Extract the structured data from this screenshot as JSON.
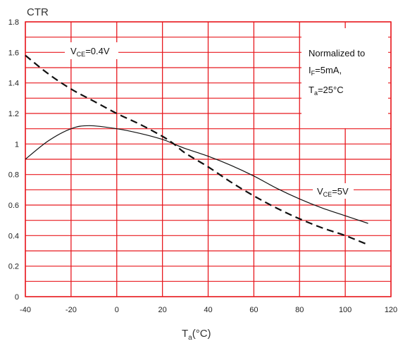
{
  "chart_data": {
    "type": "line",
    "title": "",
    "ylabel": "CTR",
    "xlabel": {
      "main": "T",
      "sub": "a",
      "tail": "(°C)"
    },
    "xlim": [
      -40,
      120
    ],
    "ylim": [
      0,
      1.8
    ],
    "xticks": [
      "-40",
      "-20",
      "0",
      "20",
      "40",
      "60",
      "80",
      "100",
      "120"
    ],
    "yticks": [
      "0",
      "0.2",
      "0.4",
      "0.6",
      "0.8",
      "1",
      "1.2",
      "1.4",
      "1.6",
      "1.8"
    ],
    "grid": true,
    "grid_color": "#e8191f",
    "series": [
      {
        "name": "VCE=0.4V",
        "style": "dashed",
        "color": "#111111",
        "x": [
          -40,
          -30,
          -20,
          -10,
          0,
          10,
          20,
          25,
          30,
          40,
          50,
          60,
          70,
          80,
          90,
          100,
          110
        ],
        "y": [
          1.58,
          1.46,
          1.36,
          1.28,
          1.2,
          1.13,
          1.05,
          1.0,
          0.94,
          0.85,
          0.75,
          0.66,
          0.58,
          0.51,
          0.45,
          0.4,
          0.34
        ]
      },
      {
        "name": "VCE=5V",
        "style": "solid",
        "color": "#111111",
        "x": [
          -40,
          -30,
          -20,
          -12,
          0,
          10,
          20,
          25,
          30,
          40,
          50,
          60,
          70,
          80,
          90,
          100,
          110
        ],
        "y": [
          0.9,
          1.02,
          1.1,
          1.12,
          1.1,
          1.07,
          1.03,
          1.0,
          0.97,
          0.92,
          0.86,
          0.79,
          0.71,
          0.64,
          0.58,
          0.53,
          0.48
        ]
      }
    ],
    "labels": [
      {
        "main": "V",
        "sub": "CE",
        "tail": "=0.4V"
      },
      {
        "main": "V",
        "sub": "CE",
        "tail": "=5V"
      }
    ],
    "note": {
      "line1": "Normalized to",
      "line2": {
        "main": "I",
        "sub": "F",
        "tail": "=5mA,"
      },
      "line3": {
        "main": "T",
        "sub": "a",
        "tail": "=25°C"
      }
    }
  }
}
